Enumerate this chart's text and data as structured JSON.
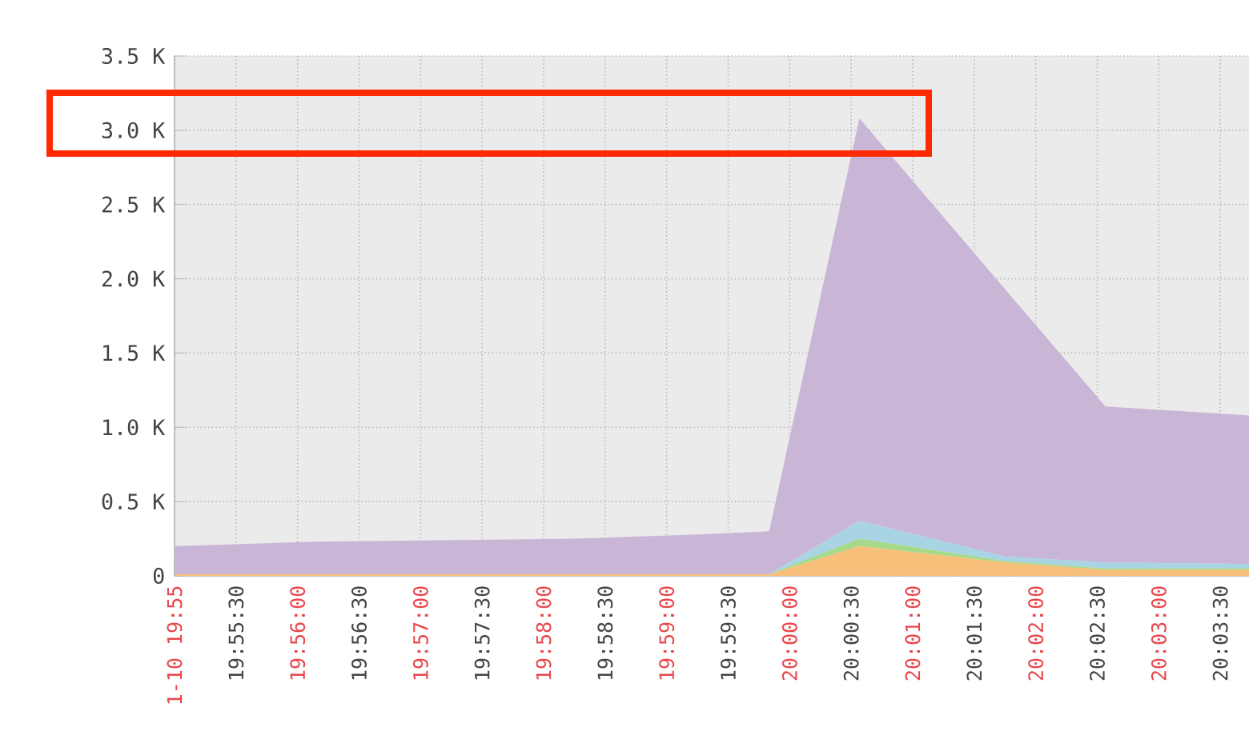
{
  "chart_data": {
    "type": "area",
    "stacked": true,
    "grid": true,
    "x": [
      19.916667,
      19.935833,
      19.971111,
      19.982778,
      19.988611,
      19.997222,
      20.009444,
      20.029167,
      20.042778,
      20.062222
    ],
    "series": [
      {
        "color": "#f7c07a",
        "values": [
          10,
          10,
          10,
          10,
          10,
          10,
          200,
          90,
          40,
          40
        ]
      },
      {
        "color": "#a6d98a",
        "values": [
          0,
          0,
          0,
          0,
          0,
          0,
          50,
          10,
          10,
          10
        ]
      },
      {
        "color": "#a8d4e4",
        "values": [
          0,
          0,
          0,
          0,
          0,
          0,
          120,
          30,
          40,
          30
        ]
      },
      {
        "color": "#c9b5d6",
        "values": [
          190,
          220,
          240,
          260,
          270,
          290,
          2710,
          1800,
          1050,
          1000
        ]
      }
    ],
    "xlim": [
      19.916667,
      20.062222
    ],
    "ylim": [
      0,
      3500
    ],
    "yticks": [
      0,
      {
        "value": 500,
        "label": "0.5 K"
      },
      {
        "value": 1000,
        "label": "1.0 K"
      },
      {
        "value": 1500,
        "label": "1.5 K"
      },
      {
        "value": 2000,
        "label": "2.0 K"
      },
      {
        "value": 2500,
        "label": "2.5 K"
      },
      {
        "value": 3000,
        "label": "3.0 K"
      },
      {
        "value": 3500,
        "label": "3.5 K"
      }
    ],
    "xticks": [
      {
        "value": 19.916667,
        "label": "1-10 19:55"
      },
      {
        "value": 19.925,
        "label": "19:55:30"
      },
      {
        "value": 19.933333,
        "label": "19:56:00"
      },
      {
        "value": 19.941667,
        "label": "19:56:30"
      },
      {
        "value": 19.95,
        "label": "19:57:00"
      },
      {
        "value": 19.958333,
        "label": "19:57:30"
      },
      {
        "value": 19.966667,
        "label": "19:58:00"
      },
      {
        "value": 19.975,
        "label": "19:58:30"
      },
      {
        "value": 19.983333,
        "label": "19:59:00"
      },
      {
        "value": 19.991667,
        "label": "19:59:30"
      },
      {
        "value": 20.0,
        "label": "20:00:00"
      },
      {
        "value": 20.008333,
        "label": "20:00:30"
      },
      {
        "value": 20.016667,
        "label": "20:01:00"
      },
      {
        "value": 20.025,
        "label": "20:01:30"
      },
      {
        "value": 20.033333,
        "label": "20:02:00"
      },
      {
        "value": 20.041667,
        "label": "20:02:30"
      },
      {
        "value": 20.05,
        "label": "20:03:00"
      },
      {
        "value": 20.058333,
        "label": "20:03:30"
      }
    ]
  }
}
